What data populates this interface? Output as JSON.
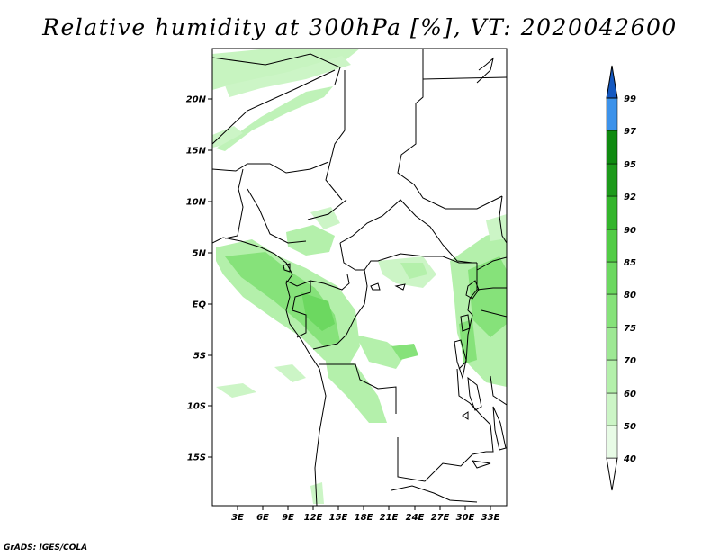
{
  "title": "Relative humidity at 300hPa [%], VT: 2020042600",
  "credit": "GrADS: IGES/COLA",
  "map": {
    "lat_labels": [
      "20N",
      "15N",
      "10N",
      "5N",
      "EQ",
      "5S",
      "10S",
      "15S"
    ],
    "lon_labels": [
      "3E",
      "6E",
      "9E",
      "12E",
      "15E",
      "18E",
      "21E",
      "24E",
      "27E",
      "30E",
      "33E"
    ]
  },
  "colorbar": {
    "levels": [
      "40",
      "50",
      "60",
      "70",
      "75",
      "80",
      "85",
      "90",
      "92",
      "95",
      "97",
      "99"
    ],
    "colors": [
      "#e8fbe6",
      "#ccf5c6",
      "#b4f0ab",
      "#9ee894",
      "#86e27a",
      "#6cd860",
      "#52cc46",
      "#34b52c",
      "#1d9a1b",
      "#0f8a10",
      "#3c92ea",
      "#1a6fd8",
      "#1458c0"
    ],
    "low_color": "#ffffff"
  }
}
